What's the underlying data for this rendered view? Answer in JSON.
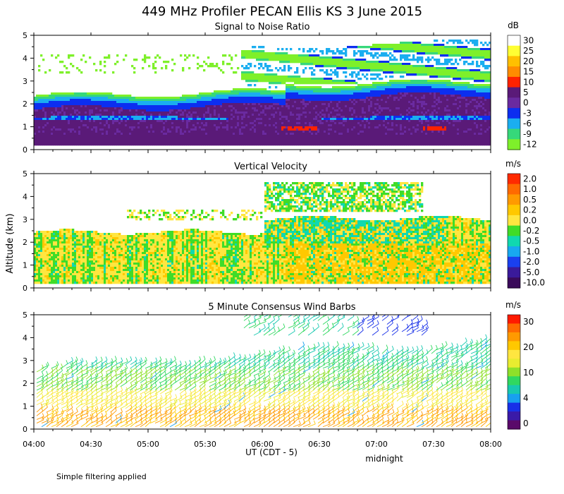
{
  "title": "449 MHz Profiler PECAN Ellis KS   3 June 2015",
  "y_axis_label": "Altitude (km)",
  "x_axis_label": "UT  (CDT - 5)",
  "midnight_label": "midnight",
  "footer_note": "Simple filtering applied",
  "chart_data": [
    {
      "type": "heatmap",
      "title": "Signal to Noise Ratio",
      "xlabel": "UT  (CDT - 5)",
      "ylabel": "Altitude (km)",
      "x_ticks": [
        "04:00",
        "04:30",
        "05:00",
        "05:30",
        "06:00",
        "06:30",
        "07:00",
        "07:30",
        "08:00"
      ],
      "xlim": [
        "04:00",
        "08:00"
      ],
      "y_ticks": [
        "0",
        "1",
        "2",
        "3",
        "4",
        "5"
      ],
      "ylim": [
        0,
        5
      ],
      "colorbar": {
        "unit": "dB",
        "labels": [
          "30",
          "25",
          "20",
          "15",
          "10",
          "5",
          "0",
          "-3",
          "-6",
          "-9",
          "-12"
        ],
        "colors": [
          "#ffffff",
          "#ffff33",
          "#ffc000",
          "#ff8c00",
          "#ff2200",
          "#5a1a78",
          "#6a2aa0",
          "#0c2ef0",
          "#1aaef0",
          "#36d87a",
          "#7ef02a"
        ]
      }
    },
    {
      "type": "heatmap",
      "title": "Vertical Velocity",
      "xlabel": "UT  (CDT - 5)",
      "ylabel": "Altitude (km)",
      "x_ticks": [
        "04:00",
        "04:30",
        "05:00",
        "05:30",
        "06:00",
        "06:30",
        "07:00",
        "07:30",
        "08:00"
      ],
      "xlim": [
        "04:00",
        "08:00"
      ],
      "y_ticks": [
        "0",
        "1",
        "2",
        "3",
        "4",
        "5"
      ],
      "ylim": [
        0,
        5
      ],
      "colorbar": {
        "unit": "m/s",
        "labels": [
          "2.0",
          "1.0",
          "0.5",
          "0.2",
          "0.0",
          "-0.2",
          "-0.5",
          "-1.0",
          "-2.0",
          "-5.0",
          "-10.0"
        ],
        "colors": [
          "#ff2a00",
          "#ff6a00",
          "#ff9a00",
          "#ffc800",
          "#ffe640",
          "#40dc28",
          "#10d8b0",
          "#18a8f0",
          "#1a40f0",
          "#3a1a9a",
          "#3a0a5a"
        ]
      }
    },
    {
      "type": "scatter",
      "title": "5 Minute Consensus Wind Barbs",
      "xlabel": "UT  (CDT - 5)",
      "ylabel": "Altitude (km)",
      "x_ticks": [
        "04:00",
        "04:30",
        "05:00",
        "05:30",
        "06:00",
        "06:30",
        "07:00",
        "07:30",
        "08:00"
      ],
      "xlim": [
        "04:00",
        "08:00"
      ],
      "y_ticks": [
        "0",
        "1",
        "2",
        "3",
        "4",
        "5"
      ],
      "ylim": [
        0,
        5
      ],
      "colorbar": {
        "unit": "m/s",
        "labels": [
          "30",
          "20",
          "10",
          "4",
          "0"
        ],
        "colors": [
          "#ff1a00",
          "#ff6a00",
          "#ff9a00",
          "#ffc800",
          "#ffe640",
          "#e8ec30",
          "#8ee02a",
          "#30d860",
          "#18c8b0",
          "#18a0f0",
          "#1830e8",
          "#3a1aa8",
          "#5a0a6a"
        ]
      }
    }
  ]
}
